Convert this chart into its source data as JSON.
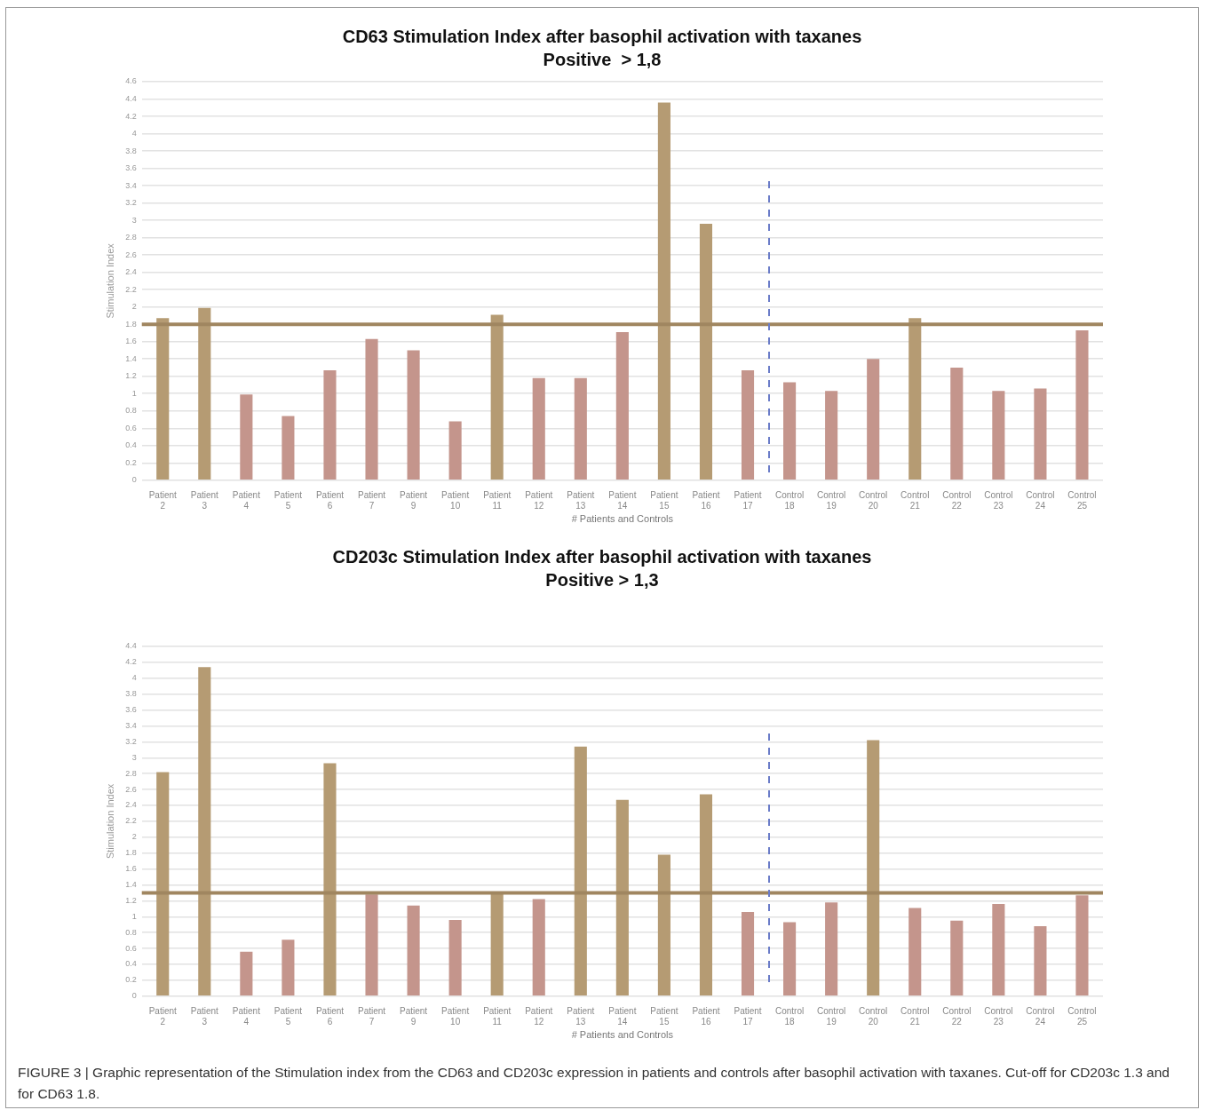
{
  "chart_data": [
    {
      "type": "bar",
      "title": "CD63 Stimulation Index after basophil activation with taxanes",
      "subtitle": "Positive  > 1,8",
      "xlabel": "# Patients and Controls",
      "ylabel": "Stimulation Index",
      "categories": [
        "Patient 2",
        "Patient 3",
        "Patient 4",
        "Patient 5",
        "Patient 6",
        "Patient 7",
        "Patient 9",
        "Patient 10",
        "Patient 11",
        "Patient 12",
        "Patient 13",
        "Patient 14",
        "Patient 15",
        "Patient 16",
        "Patient 17",
        "Control 18",
        "Control 19",
        "Control 20",
        "Control 21",
        "Control 22",
        "Control 23",
        "Control 24",
        "Control 25"
      ],
      "values": [
        1.87,
        1.99,
        0.99,
        0.74,
        1.27,
        1.63,
        1.5,
        0.68,
        1.91,
        1.18,
        1.18,
        1.71,
        4.36,
        2.96,
        1.27,
        1.13,
        1.03,
        1.4,
        1.87,
        1.3,
        1.03,
        1.06,
        1.73
      ],
      "colors": [
        "#b59b73",
        "#b59b73",
        "#c4958c",
        "#c4958c",
        "#c4958c",
        "#c4958c",
        "#c4958c",
        "#c4958c",
        "#b59b73",
        "#c4958c",
        "#c4958c",
        "#c4958c",
        "#b59b73",
        "#b59b73",
        "#c4958c",
        "#c4958c",
        "#c4958c",
        "#c4958c",
        "#b59b73",
        "#c4958c",
        "#c4958c",
        "#c4958c",
        "#c4958c"
      ],
      "ylim": [
        0,
        4.6
      ],
      "yticks": [
        0,
        0.2,
        0.4,
        0.6,
        0.8,
        1,
        1.2,
        1.4,
        1.6,
        1.8,
        2,
        2.2,
        2.4,
        2.6,
        2.8,
        3,
        3.2,
        3.4,
        3.6,
        3.8,
        4,
        4.2,
        4.4,
        4.6
      ],
      "grid": "y",
      "ref_lines": [
        {
          "axis": "y",
          "value": 1.8,
          "color": "#a08660"
        }
      ]
    },
    {
      "type": "bar",
      "title": "CD203c Stimulation Index after basophil activation with taxanes",
      "subtitle": "Positive > 1,3",
      "xlabel": "# Patients and Controls",
      "ylabel": "Stimulation Index",
      "categories": [
        "Patient 2",
        "Patient 3",
        "Patient 4",
        "Patient 5",
        "Patient 6",
        "Patient 7",
        "Patient 9",
        "Patient 10",
        "Patient 11",
        "Patient 12",
        "Patient 13",
        "Patient 14",
        "Patient 15",
        "Patient 16",
        "Patient 17",
        "Control 18",
        "Control 19",
        "Control 20",
        "Control 21",
        "Control 22",
        "Control 23",
        "Control 24",
        "Control 25"
      ],
      "values": [
        2.82,
        4.14,
        0.56,
        0.71,
        2.93,
        1.28,
        1.14,
        0.96,
        1.29,
        1.22,
        3.14,
        2.47,
        1.78,
        2.54,
        1.06,
        0.93,
        1.18,
        3.22,
        1.11,
        0.95,
        1.16,
        0.88,
        1.27
      ],
      "colors": [
        "#b59b73",
        "#b59b73",
        "#c4958c",
        "#c4958c",
        "#b59b73",
        "#c4958c",
        "#c4958c",
        "#c4958c",
        "#b59b73",
        "#c4958c",
        "#b59b73",
        "#b59b73",
        "#b59b73",
        "#b59b73",
        "#c4958c",
        "#c4958c",
        "#c4958c",
        "#b59b73",
        "#c4958c",
        "#c4958c",
        "#c4958c",
        "#c4958c",
        "#c4958c"
      ],
      "ylim": [
        0,
        4.4
      ],
      "yticks": [
        0,
        0.2,
        0.4,
        0.6,
        0.8,
        1,
        1.2,
        1.4,
        1.6,
        1.8,
        2,
        2.2,
        2.4,
        2.6,
        2.8,
        3,
        3.2,
        3.4,
        3.6,
        3.8,
        4,
        4.2,
        4.4
      ],
      "grid": "y",
      "ref_lines": [
        {
          "axis": "y",
          "value": 1.3,
          "color": "#a08660"
        }
      ],
      "annotations": [
        "FIGURE 3 | Graphic representation of the Stimulation index from the CD63 and CD203c expression in patients and controls after basophil activation with taxanes. Cut-off for CD203c 1.3 and for CD63 1.8."
      ]
    }
  ]
}
